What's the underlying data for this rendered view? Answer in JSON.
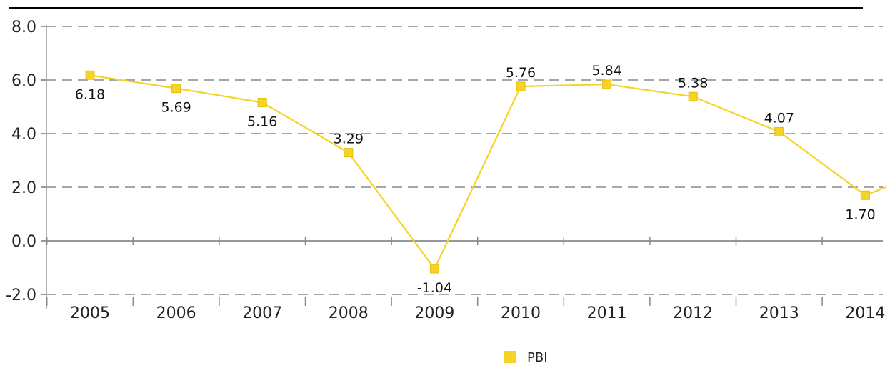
{
  "chart_data": {
    "type": "line",
    "categories": [
      "2005",
      "2006",
      "2007",
      "2008",
      "2009",
      "2010",
      "2011",
      "2012",
      "2013",
      "2014"
    ],
    "series": [
      {
        "name": "PBI",
        "values": [
          6.18,
          5.69,
          5.16,
          3.29,
          -1.04,
          5.76,
          5.84,
          5.38,
          4.07,
          1.7
        ],
        "labels": [
          "6.18",
          "5.69",
          "5.16",
          "3.29",
          "-1.04",
          "5.76",
          "5.84",
          "5.38",
          "4.07",
          "1.70"
        ],
        "color": "#f5d327"
      }
    ],
    "y_ticks": [
      "8.0",
      "6.0",
      "4.0",
      "2.0",
      "0.0",
      "-2.0"
    ],
    "ylim": [
      -2,
      8
    ],
    "grid": "dashed horizontal",
    "legend_position": "bottom-center",
    "continues_right": true,
    "next_value_hint": 2.0
  }
}
